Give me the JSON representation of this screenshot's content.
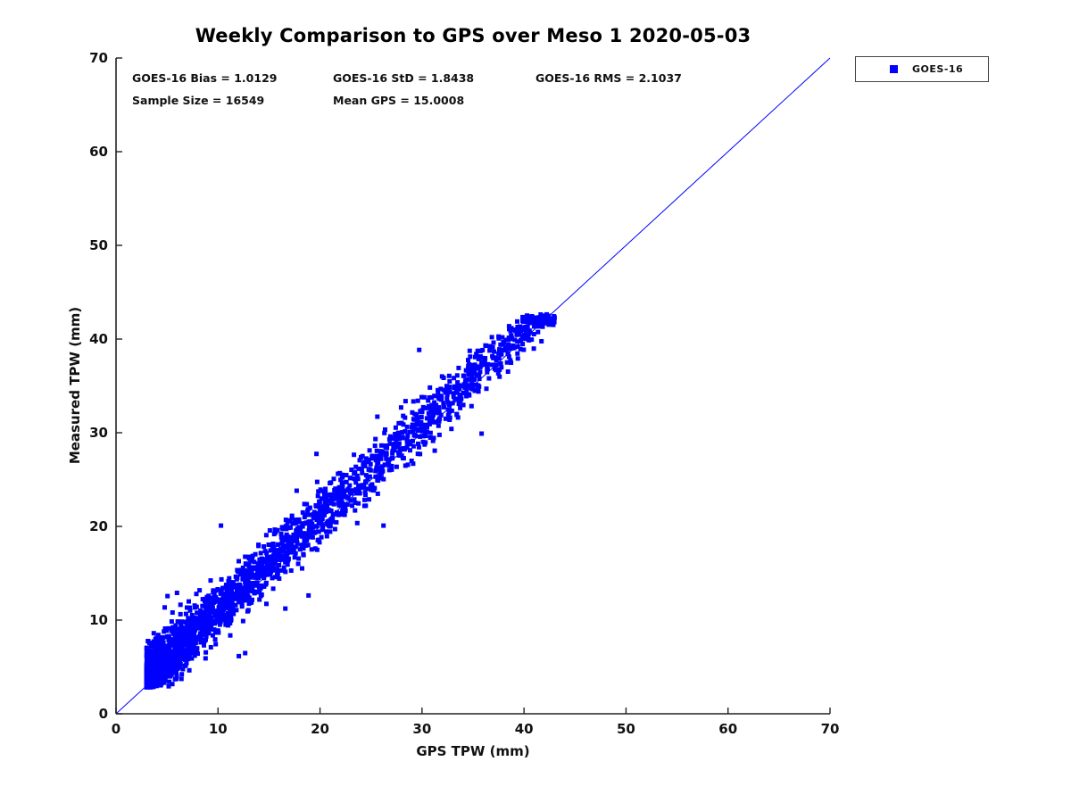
{
  "title": "Weekly Comparison to GPS over Meso 1 2020-05-03",
  "annotations": {
    "bias": "GOES-16 Bias = 1.0129",
    "std": "GOES-16 StD = 1.8438",
    "rms": "GOES-16 RMS = 2.1037",
    "sample_size": "Sample Size = 16549",
    "mean_gps": "Mean GPS = 15.0008"
  },
  "legend": {
    "label": "GOES-16",
    "marker_color": "#0000ff"
  },
  "axes": {
    "xlabel": "GPS TPW (mm)",
    "ylabel": "Measured TPW (mm)"
  },
  "chart_data": {
    "type": "scatter",
    "title": "Weekly Comparison to GPS over Meso 1 2020-05-03",
    "xlabel": "GPS TPW (mm)",
    "ylabel": "Measured TPW (mm)",
    "xlim": [
      0,
      70
    ],
    "ylim": [
      0,
      70
    ],
    "xticks": [
      0,
      10,
      20,
      30,
      40,
      50,
      60,
      70
    ],
    "yticks": [
      0,
      10,
      20,
      30,
      40,
      50,
      60,
      70
    ],
    "grid": false,
    "legend_position": "top-right-outside",
    "axis_color": "#222222",
    "identity_line": {
      "from": [
        0,
        0
      ],
      "to": [
        70,
        70
      ],
      "color": "#0000ff",
      "width": 1
    },
    "series": [
      {
        "name": "GOES-16",
        "marker": "square",
        "color": "#0000ff",
        "marker_size_px": 5,
        "stats": {
          "bias": 1.0129,
          "std": 1.8438,
          "rms": 2.1037,
          "sample_size": 16549,
          "mean_gps": 15.0008
        },
        "x_range": [
          3,
          43
        ],
        "y_range": [
          3.5,
          41.5
        ],
        "point_cloud": {
          "seed": 42,
          "render_count": 2600,
          "model": "y = x + bias + gaussian(std_render)",
          "std_render": 1.4,
          "x_distribution": "x = 3 + 40 * u^2.3",
          "outlier_rate": 0.008,
          "outlier_magnitude": [
            3,
            9
          ]
        }
      }
    ]
  }
}
